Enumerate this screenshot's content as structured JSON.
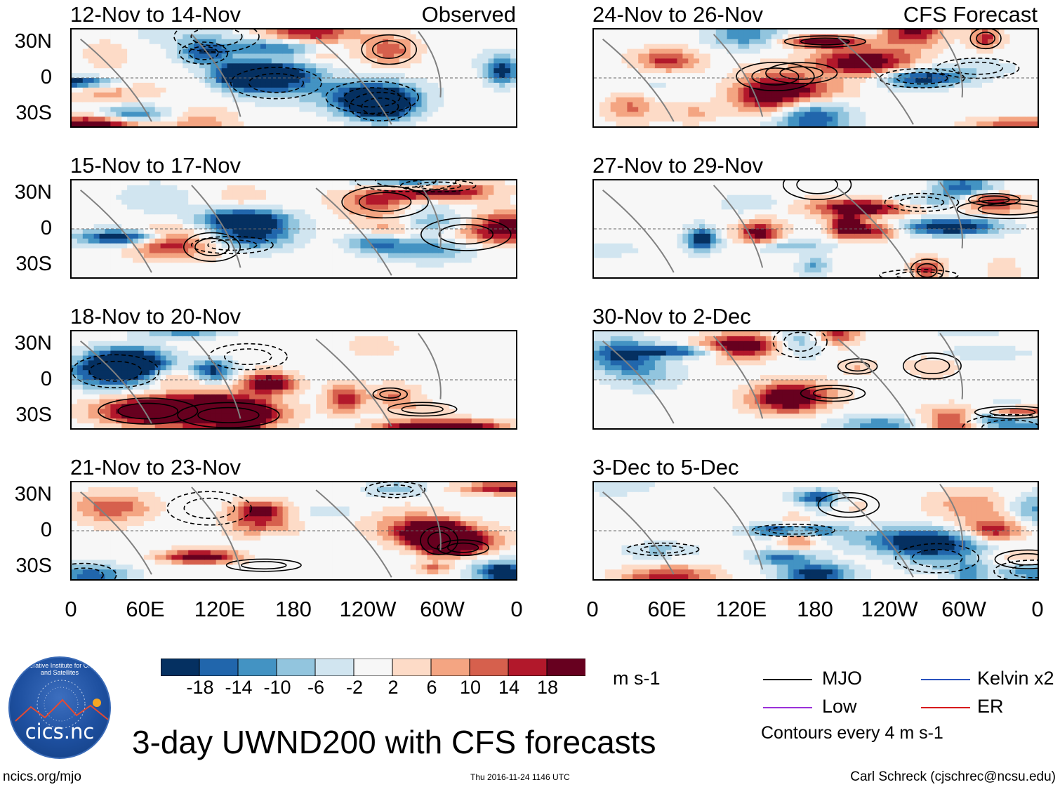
{
  "chart_data": {
    "type": "heatmap",
    "title": "3-day UWND200 with CFS forecasts",
    "units": "m s-1",
    "x_ticks": [
      "0",
      "60E",
      "120E",
      "180",
      "120W",
      "60W",
      "0"
    ],
    "y_ticks": [
      "30N",
      "0",
      "30S"
    ],
    "colorbar_ticks": [
      "-18",
      "-14",
      "-10",
      "-6",
      "-2",
      "2",
      "6",
      "10",
      "14",
      "18"
    ],
    "colorbar_colors": [
      "#053061",
      "#2166ac",
      "#4393c3",
      "#92c5de",
      "#d1e5f0",
      "#f7f7f7",
      "#fddbc7",
      "#f4a582",
      "#d6604d",
      "#b2182b",
      "#67001f"
    ],
    "panels": [
      {
        "id": "p1",
        "period": "12-Nov to 14-Nov",
        "label": "Observed"
      },
      {
        "id": "p2",
        "period": "15-Nov to 17-Nov",
        "label": ""
      },
      {
        "id": "p3",
        "period": "18-Nov to 20-Nov",
        "label": ""
      },
      {
        "id": "p4",
        "period": "21-Nov to 23-Nov",
        "label": ""
      },
      {
        "id": "p5",
        "period": "24-Nov to 26-Nov",
        "label": "CFS Forecast"
      },
      {
        "id": "p6",
        "period": "27-Nov to 29-Nov",
        "label": ""
      },
      {
        "id": "p7",
        "period": "30-Nov to 2-Dec",
        "label": ""
      },
      {
        "id": "p8",
        "period": "3-Dec to 5-Dec",
        "label": ""
      }
    ],
    "legend": [
      {
        "name": "MJO",
        "color": "#000000"
      },
      {
        "name": "Kelvin x2",
        "color": "#2a52be"
      },
      {
        "name": "Low",
        "color": "#9b30d9"
      },
      {
        "name": "ER",
        "color": "#d7191c"
      }
    ],
    "contour_note": "Contours every 4 m s-1"
  },
  "logo": {
    "text": "cics.nc",
    "ring_text": "Cooperative Institute for Climate and Satellites"
  },
  "footer": {
    "left": "ncics.org/mjo",
    "center": "Thu 2016-11-24 1146 UTC",
    "right": "Carl Schreck (cjschrec@ncsu.edu)"
  }
}
